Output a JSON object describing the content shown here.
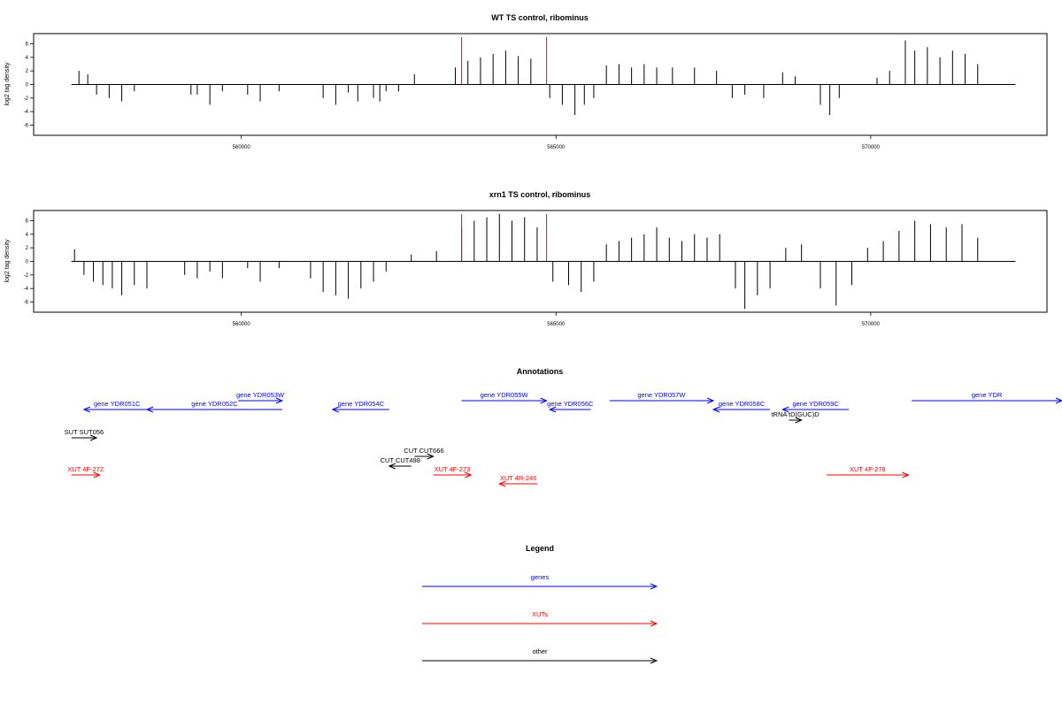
{
  "chart_data": [
    {
      "type": "bar",
      "title": "WT TS control, ribominus",
      "ylabel": "log2 tag density",
      "xlabel": "",
      "xlim": [
        556700,
        572800
      ],
      "ylim": [
        -7.5,
        7.5
      ],
      "x_ticks": [
        560000,
        565000,
        570000
      ],
      "x_tick_labels": [
        "560000",
        "565000",
        "570000"
      ],
      "y_ticks": [
        -6,
        -4,
        -2,
        0,
        2,
        4,
        6
      ],
      "y_tick_labels": [
        "-6",
        "-4",
        "-2",
        "0",
        "2",
        "4",
        "6"
      ],
      "baseline": 0,
      "baseline_x": [
        557300,
        572300
      ],
      "markers_x": [
        563500,
        564850
      ],
      "series": [
        {
          "name": "",
          "x": [
            557420,
            557560,
            557700,
            557900,
            558100,
            558300,
            559200,
            559300,
            559500,
            559700,
            560100,
            560300,
            560600,
            561300,
            561500,
            561700,
            561850,
            562100,
            562200,
            562300,
            562500,
            562750,
            563400,
            563600,
            563800,
            564000,
            564200,
            564400,
            564600,
            564900,
            565100,
            565300,
            565450,
            565600,
            565800,
            566000,
            566200,
            566400,
            566600,
            566850,
            567200,
            567550,
            567800,
            568000,
            568300,
            568600,
            568800,
            569200,
            569350,
            569500,
            570100,
            570300,
            570550,
            570700,
            570900,
            571100,
            571300,
            571500,
            571700
          ],
          "values": [
            2,
            1.5,
            -1.5,
            -2,
            -2.5,
            -1,
            -1.5,
            -1.5,
            -3,
            -1,
            -1.5,
            -2.5,
            -1,
            -2,
            -3,
            -1.2,
            -2.5,
            -2,
            -2.5,
            -1,
            -1,
            1.5,
            2.5,
            3.5,
            4,
            4.5,
            5,
            4.2,
            3.8,
            -2,
            -3,
            -4.5,
            -3,
            -2,
            2.8,
            3,
            2.5,
            3,
            2.5,
            2.5,
            2.5,
            2,
            -2,
            -1.5,
            -2,
            1.8,
            1.2,
            -3,
            -4.5,
            -2,
            1,
            2,
            6.5,
            5,
            5.5,
            4,
            5,
            4.5,
            3
          ]
        }
      ]
    },
    {
      "type": "bar",
      "title": "xrn1 TS control, ribominus",
      "ylabel": "log2 tag density",
      "xlabel": "",
      "xlim": [
        556700,
        572800
      ],
      "ylim": [
        -7.5,
        7.5
      ],
      "x_ticks": [
        560000,
        565000,
        570000
      ],
      "x_tick_labels": [
        "560000",
        "565000",
        "570000"
      ],
      "y_ticks": [
        -6,
        -4,
        -2,
        0,
        2,
        4,
        6
      ],
      "y_tick_labels": [
        "-6",
        "-4",
        "-2",
        "0",
        "2",
        "4",
        "6"
      ],
      "baseline": 0,
      "baseline_x": [
        557300,
        572300
      ],
      "markers_x": [
        563500,
        564850
      ],
      "series": [
        {
          "name": "",
          "x": [
            557350,
            557500,
            557650,
            557800,
            557950,
            558100,
            558300,
            558500,
            559100,
            559300,
            559500,
            559700,
            560100,
            560300,
            560600,
            561100,
            561300,
            561500,
            561700,
            561900,
            562100,
            562300,
            562700,
            563100,
            563500,
            563700,
            563900,
            564100,
            564300,
            564500,
            564700,
            564950,
            565200,
            565400,
            565600,
            565800,
            566000,
            566200,
            566400,
            566600,
            566800,
            567000,
            567200,
            567400,
            567600,
            567850,
            568000,
            568200,
            568400,
            568650,
            568900,
            569200,
            569450,
            569700,
            569950,
            570200,
            570450,
            570700,
            570950,
            571200,
            571450,
            571700
          ],
          "values": [
            1.8,
            -2,
            -3,
            -3.5,
            -4,
            -5,
            -3.5,
            -4,
            -2,
            -2.5,
            -1.5,
            -2.5,
            -1,
            -3,
            -1,
            -2.5,
            -4.5,
            -5,
            -5.5,
            -4,
            -3,
            -1.5,
            1,
            1.5,
            5,
            6,
            6.5,
            7,
            6,
            6.5,
            5,
            -3,
            -3.5,
            -4.5,
            -3,
            2.5,
            3,
            3.5,
            4,
            5,
            3.5,
            3,
            4,
            3.5,
            4,
            -4,
            -7,
            -5,
            -4,
            2,
            2.5,
            -4,
            -6.5,
            -3.5,
            2,
            3,
            4.5,
            6,
            5.5,
            5,
            5.5,
            3.5
          ]
        }
      ]
    }
  ],
  "annotations": {
    "title": "Annotations",
    "genes": [
      {
        "label": "gene YDR051C",
        "start": 557500,
        "end": 558550,
        "dir": "left",
        "row": 1
      },
      {
        "label": "gene YDR052C",
        "start": 558500,
        "end": 560650,
        "dir": "left",
        "row": 1
      },
      {
        "label": "gene YDR053W",
        "start": 559950,
        "end": 560650,
        "dir": "right",
        "row": 0
      },
      {
        "label": "gene YDR054C",
        "start": 561450,
        "end": 562350,
        "dir": "left",
        "row": 1
      },
      {
        "label": "gene YDR055W",
        "start": 563500,
        "end": 564850,
        "dir": "right",
        "row": 0
      },
      {
        "label": "gene YDR056C",
        "start": 564900,
        "end": 565550,
        "dir": "left",
        "row": 1
      },
      {
        "label": "gene YDR057W",
        "start": 565850,
        "end": 567500,
        "dir": "right",
        "row": 0
      },
      {
        "label": "gene YDR058C",
        "start": 567500,
        "end": 568400,
        "dir": "left",
        "row": 1
      },
      {
        "label": "gene YDR059C",
        "start": 568600,
        "end": 569650,
        "dir": "left",
        "row": 1
      },
      {
        "label": "gene YDR",
        "start": 570650,
        "end": 573100,
        "dir": "right",
        "row": 0
      }
    ],
    "xuts": [
      {
        "label": "XUT 4F-272",
        "start": 557300,
        "end": 557750,
        "dir": "right"
      },
      {
        "label": "XUT 4F-273",
        "start": 563050,
        "end": 563650,
        "dir": "right"
      },
      {
        "label": "XUT 4R-246",
        "start": 564100,
        "end": 564700,
        "dir": "left"
      },
      {
        "label": "XUT 4F-278",
        "start": 569300,
        "end": 570600,
        "dir": "right"
      }
    ],
    "others": [
      {
        "label": "SUT SUT056",
        "start": 557300,
        "end": 557700,
        "dir": "right"
      },
      {
        "label": "CUT CUT498",
        "start": 562350,
        "end": 562700,
        "dir": "left"
      },
      {
        "label": "CUT CUT666",
        "start": 562750,
        "end": 563050,
        "dir": "right"
      },
      {
        "label": "tRNA tD(GUC)D",
        "start": 568700,
        "end": 568900,
        "dir": "right"
      }
    ]
  },
  "legend": {
    "title": "Legend",
    "items": [
      {
        "label": "genes",
        "color": "#0000ff"
      },
      {
        "label": "XUTs",
        "color": "#ff0000"
      },
      {
        "label": "other",
        "color": "#000000"
      }
    ]
  },
  "colors": {
    "gene": "#0000ff",
    "xut": "#ff0000",
    "other": "#000000",
    "marker": "#ff0000"
  }
}
